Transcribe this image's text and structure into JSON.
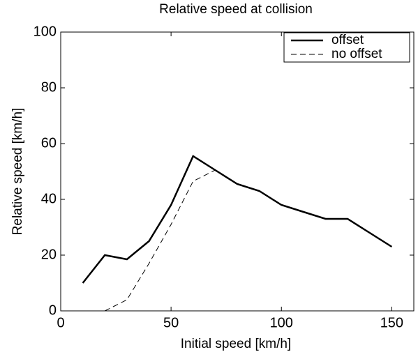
{
  "chart_data": {
    "type": "line",
    "title": "Relative speed at collision",
    "xlabel": "Initial speed [km/h]",
    "ylabel": "Relative speed [km/h]",
    "x": [
      10,
      20,
      30,
      40,
      50,
      60,
      70,
      80,
      90,
      100,
      110,
      120,
      130,
      140,
      150
    ],
    "series": [
      {
        "name": "offset",
        "color": "#000000",
        "style": "solid",
        "values": [
          10,
          20,
          18.5,
          25,
          38,
          55.5,
          50.5,
          45.5,
          43,
          38,
          35.5,
          33,
          33,
          28,
          23
        ]
      },
      {
        "name": "no offset",
        "color": "#000000",
        "style": "dashed",
        "values": [
          null,
          0,
          4,
          17,
          31,
          46.5,
          50.5,
          45.5,
          43,
          38,
          35.5,
          33,
          33,
          28,
          23
        ]
      }
    ],
    "xlim": [
      0,
      160
    ],
    "xticks": [
      0,
      50,
      100,
      150
    ],
    "ylim": [
      0,
      100
    ],
    "yticks": [
      0,
      20,
      40,
      60,
      80,
      100
    ],
    "legend": "upper right",
    "grid": false
  }
}
